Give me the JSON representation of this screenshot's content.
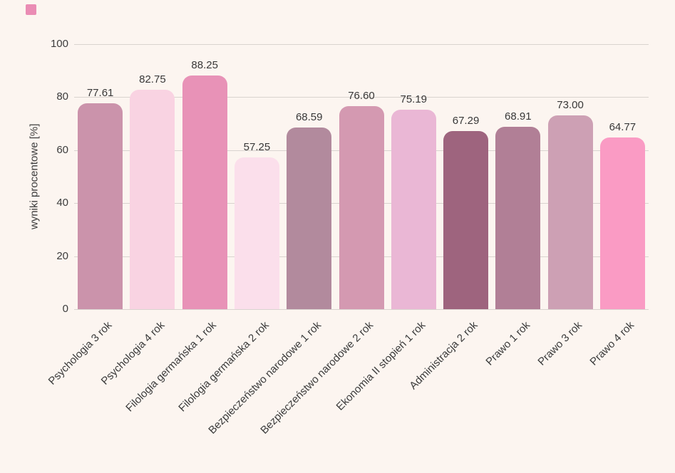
{
  "brand": {
    "square_color": "#ea8cb4"
  },
  "chart_data": {
    "type": "bar",
    "title": "",
    "xlabel": "",
    "ylabel": "wyniki procentowe [%]",
    "categories": [
      "Psychologia 3 rok",
      "Psychologia 4 rok",
      "Filologia germańska 1 rok",
      "Filologia germańska 2 rok",
      "Bezpieczeństwo narodowe 1 rok",
      "Bezpieczeństwo narodowe 2 rok",
      "Ekonomia II stopień 1 rok",
      "Administracja 2 rok",
      "Prawo 1 rok",
      "Prawo 3 rok",
      "Prawo 4 rok"
    ],
    "values": [
      77.61,
      82.75,
      88.25,
      57.25,
      68.59,
      76.6,
      75.19,
      67.29,
      68.91,
      73.0,
      64.77
    ],
    "value_labels": [
      "77.61",
      "82.75",
      "88.25",
      "57.25",
      "68.59",
      "76.60",
      "75.19",
      "67.29",
      "68.91",
      "73.00",
      "64.77"
    ],
    "bar_colors": [
      "#cb93ab",
      "#f9d3e2",
      "#e892b7",
      "#fbdfeb",
      "#b28a9d",
      "#d499b1",
      "#eab7d5",
      "#9e647e",
      "#b17f96",
      "#cda0b4",
      "#fa9bc4"
    ],
    "ylim": [
      0,
      100
    ],
    "yticks": [
      0,
      20,
      40,
      60,
      80,
      100
    ],
    "grid": "horizontal",
    "legend": "none",
    "background_color": "#fcf5f0",
    "grid_color": "#d9d3cf",
    "text_color": "#3c3c3c"
  }
}
